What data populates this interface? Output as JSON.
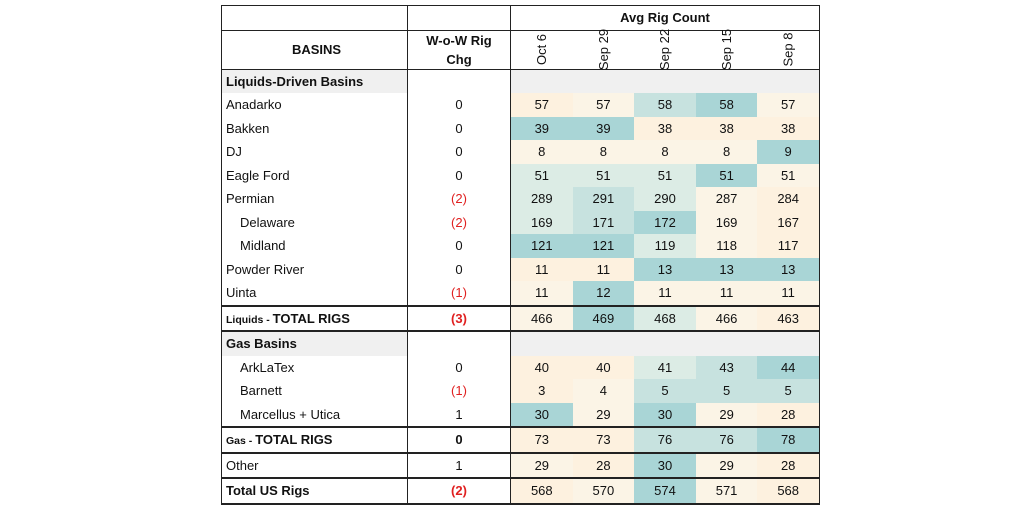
{
  "header": {
    "avg_rig_count": "Avg Rig Count",
    "basins": "BASINS",
    "wow_line1": "W-o-W Rig",
    "wow_line2": "Chg",
    "dates": [
      "Oct 6",
      "Sep 29",
      "Sep 22",
      "Sep 15",
      "Sep 8"
    ]
  },
  "sections": {
    "liquids": "Liquids-Driven Basins",
    "gas": "Gas Basins"
  },
  "rows": {
    "anadarko": {
      "name": "Anadarko",
      "chg": "0",
      "v": [
        "57",
        "57",
        "58",
        "58",
        "57"
      ]
    },
    "bakken": {
      "name": "Bakken",
      "chg": "0",
      "v": [
        "39",
        "39",
        "38",
        "38",
        "38"
      ]
    },
    "dj": {
      "name": "DJ",
      "chg": "0",
      "v": [
        "8",
        "8",
        "8",
        "8",
        "9"
      ]
    },
    "eagle_ford": {
      "name": "Eagle Ford",
      "chg": "0",
      "v": [
        "51",
        "51",
        "51",
        "51",
        "51"
      ]
    },
    "permian": {
      "name": "Permian",
      "chg": "(2)",
      "v": [
        "289",
        "291",
        "290",
        "287",
        "284"
      ]
    },
    "delaware": {
      "name": "Delaware",
      "chg": "(2)",
      "v": [
        "169",
        "171",
        "172",
        "169",
        "167"
      ]
    },
    "midland": {
      "name": "Midland",
      "chg": "0",
      "v": [
        "121",
        "121",
        "119",
        "118",
        "117"
      ]
    },
    "powder": {
      "name": "Powder River",
      "chg": "0",
      "v": [
        "11",
        "11",
        "13",
        "13",
        "13"
      ]
    },
    "uinta": {
      "name": "Uinta",
      "chg": "(1)",
      "v": [
        "11",
        "12",
        "11",
        "11",
        "11"
      ]
    },
    "liq_total": {
      "prefix": "Liquids - ",
      "name": "TOTAL RIGS",
      "chg": "(3)",
      "v": [
        "466",
        "469",
        "468",
        "466",
        "463"
      ]
    },
    "arklatex": {
      "name": "ArkLaTex",
      "chg": "0",
      "v": [
        "40",
        "40",
        "41",
        "43",
        "44"
      ]
    },
    "barnett": {
      "name": "Barnett",
      "chg": "(1)",
      "v": [
        "3",
        "4",
        "5",
        "5",
        "5"
      ]
    },
    "marcellus": {
      "name": "Marcellus + Utica",
      "chg": "1",
      "v": [
        "30",
        "29",
        "30",
        "29",
        "28"
      ]
    },
    "gas_total": {
      "prefix": "Gas - ",
      "name": "TOTAL RIGS",
      "chg": "0",
      "v": [
        "73",
        "73",
        "76",
        "76",
        "78"
      ]
    },
    "other": {
      "name": "Other",
      "chg": "1",
      "v": [
        "29",
        "28",
        "30",
        "29",
        "28"
      ]
    },
    "us_total": {
      "name": "Total US Rigs",
      "chg": "(2)",
      "v": [
        "568",
        "570",
        "574",
        "571",
        "568"
      ]
    }
  },
  "colors": {
    "negative": "#e02020",
    "heat_high": "#a9d5d6",
    "heat_mid": "#c7e2df",
    "heat_low": "#fdf1df",
    "section_fill": "#f0f0f0"
  }
}
